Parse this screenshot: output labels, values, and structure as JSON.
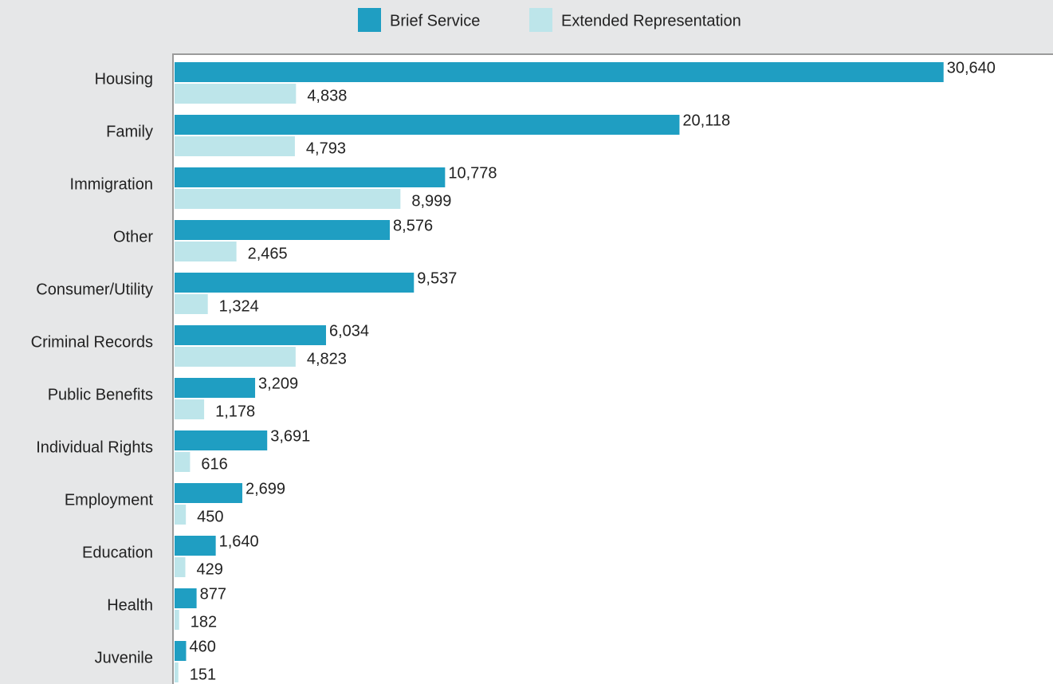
{
  "chart_data": {
    "type": "barh",
    "categories": [
      "Housing",
      "Family",
      "Immigration",
      "Other",
      "Consumer/Utility",
      "Criminal Records",
      "Public Benefits",
      "Individual Rights",
      "Employment",
      "Education",
      "Health",
      "Juvenile"
    ],
    "series": [
      {
        "name": "Brief Service",
        "color": "#1f9ec2",
        "values": [
          30640,
          20118,
          10778,
          8576,
          9537,
          6034,
          3209,
          3691,
          2699,
          1640,
          877,
          460
        ],
        "value_labels": [
          "30,640",
          "20,118",
          "10,778",
          "8,576",
          "9,537",
          "6,034",
          "3,209",
          "3,691",
          "2,699",
          "1,640",
          "877",
          "460"
        ]
      },
      {
        "name": "Extended Representation",
        "color": "#bde5ea",
        "values": [
          4838,
          4793,
          8999,
          2465,
          1324,
          4823,
          1178,
          616,
          450,
          429,
          182,
          151
        ],
        "value_labels": [
          "4,838",
          "4,793",
          "8,999",
          "2,465",
          "1,324",
          "4,823",
          "1,178",
          "616",
          "450",
          "429",
          "182",
          "151"
        ]
      }
    ],
    "xlim": [
      0,
      35000
    ],
    "legend": "top"
  }
}
